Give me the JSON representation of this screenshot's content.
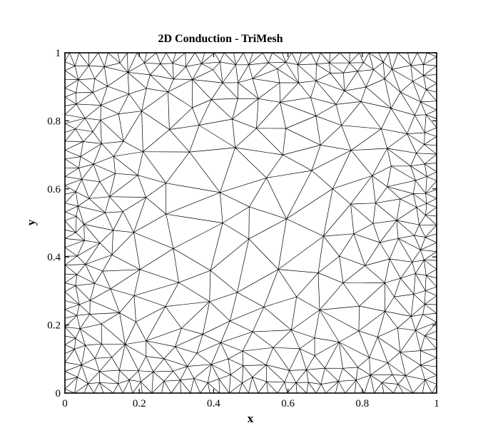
{
  "chart_data": {
    "type": "mesh",
    "title": "2D Conduction - TriMesh",
    "xlabel": "x",
    "ylabel": "y",
    "xlim": [
      0,
      1
    ],
    "ylim": [
      0,
      1
    ],
    "xticks": [
      0,
      0.2,
      0.4,
      0.6,
      0.8,
      1
    ],
    "yticks": [
      0,
      0.2,
      0.4,
      0.6,
      0.8,
      1
    ],
    "xtick_labels": [
      "0",
      "0.2",
      "0.4",
      "0.6",
      "0.8",
      "1"
    ],
    "ytick_labels": [
      "0",
      "0.2",
      "0.4",
      "0.6",
      "0.8",
      "1"
    ],
    "grid": false,
    "mesh": {
      "element_type": "triangle",
      "boundary_refined": true,
      "line_color": "#000000"
    }
  }
}
